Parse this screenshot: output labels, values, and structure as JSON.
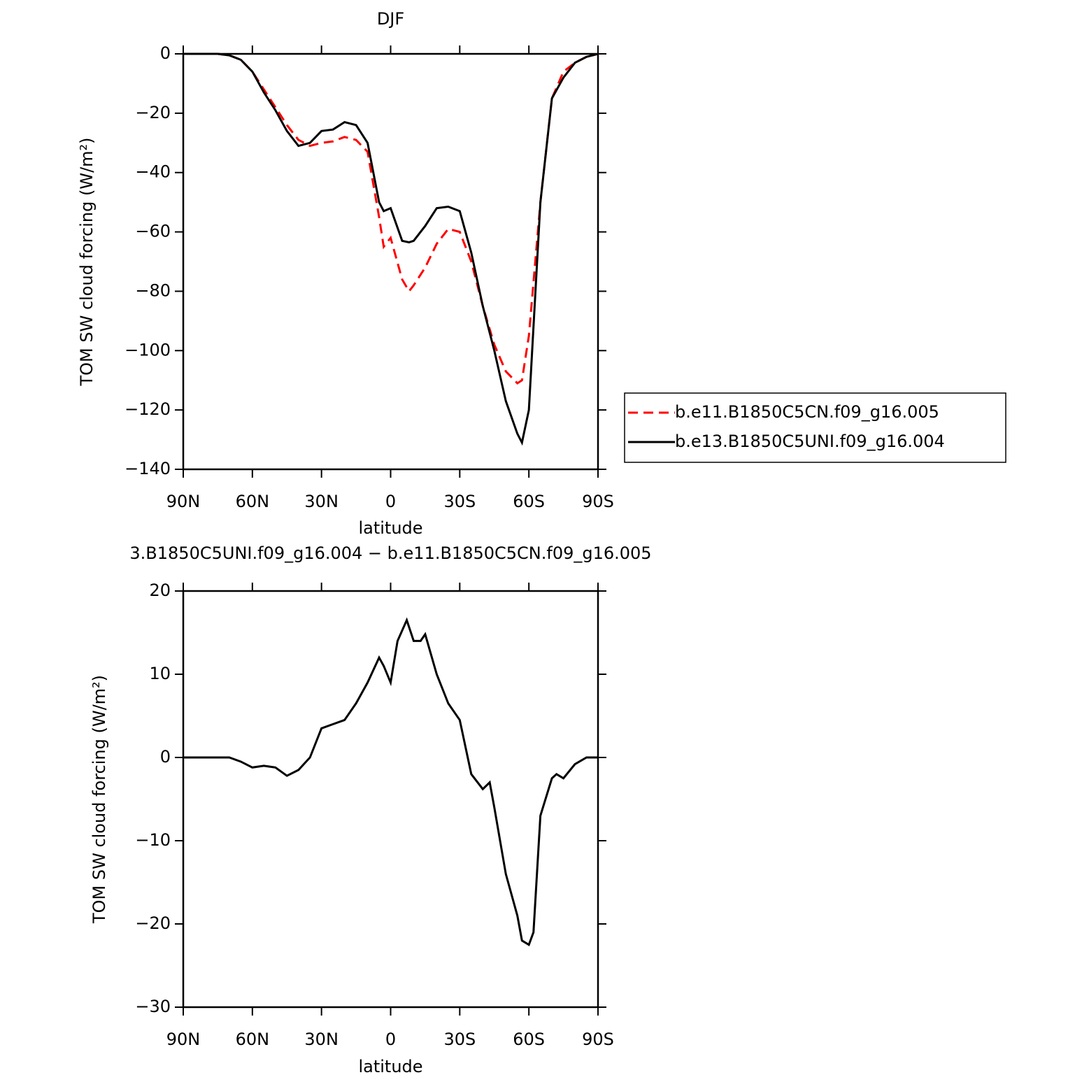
{
  "chart_data": [
    {
      "type": "line",
      "title": "DJF",
      "x_label": "latitude",
      "y_label": "TOM SW cloud forcing (W/m²)",
      "x": [
        90,
        85,
        80,
        75,
        70,
        65,
        60,
        55,
        50,
        45,
        40,
        35,
        30,
        25,
        20,
        15,
        10,
        5,
        3,
        0,
        -5,
        -8,
        -10,
        -15,
        -20,
        -25,
        -30,
        -35,
        -40,
        -45,
        -50,
        -55,
        -57,
        -60,
        -65,
        -70,
        -75,
        -80,
        -85,
        -90
      ],
      "series": [
        {
          "name": "b.e11.B1850C5CN.f09_g16.005",
          "color": "#ff0000",
          "dashed": true,
          "values": [
            0,
            0,
            0,
            0,
            -0.5,
            -2,
            -6,
            -12,
            -18,
            -24,
            -29,
            -31,
            -30,
            -29.5,
            -28,
            -29,
            -33,
            -55,
            -65,
            -62,
            -76,
            -80,
            -78,
            -72,
            -64,
            -59,
            -60,
            -70,
            -85,
            -98,
            -107,
            -111,
            -110,
            -95,
            -50,
            -15,
            -6,
            -3,
            -1,
            0
          ]
        },
        {
          "name": "b.e13.B1850C5UNI.f09_g16.004",
          "color": "#000000",
          "dashed": false,
          "values": [
            0,
            0,
            0,
            0,
            -0.5,
            -2,
            -6,
            -13,
            -19,
            -26,
            -31,
            -30,
            -26,
            -25.5,
            -23,
            -24,
            -30,
            -50,
            -53,
            -52,
            -63,
            -63.5,
            -63,
            -58,
            -52,
            -51.5,
            -53,
            -67,
            -85,
            -100,
            -117,
            -128,
            -131,
            -120,
            -50,
            -15,
            -8,
            -3,
            -1,
            0
          ]
        }
      ],
      "xlim": [
        90,
        -90
      ],
      "xticks": [
        {
          "value": 90,
          "label": "90N"
        },
        {
          "value": 60,
          "label": "60N"
        },
        {
          "value": 30,
          "label": "30N"
        },
        0,
        {
          "value": -30,
          "label": "30S"
        },
        {
          "value": -60,
          "label": "60S"
        },
        {
          "value": -90,
          "label": "90S"
        }
      ],
      "ylim": [
        -140,
        0
      ],
      "yticks": [
        {
          "value": 0,
          "label": "0"
        },
        {
          "value": -20,
          "label": "−20"
        },
        {
          "value": -40,
          "label": "−40"
        },
        {
          "value": -60,
          "label": "−60"
        },
        {
          "value": -80,
          "label": "−80"
        },
        {
          "value": -100,
          "label": "−100"
        },
        {
          "value": -120,
          "label": "−120"
        },
        {
          "value": -140,
          "label": "−140"
        }
      ],
      "legend": "right"
    },
    {
      "type": "line",
      "title": "3.B1850C5UNI.f09_g16.004 − b.e11.B1850C5CN.f09_g16.005",
      "x_label": "latitude",
      "y_label": "TOM SW cloud forcing (W/m²)",
      "x": [
        90,
        85,
        80,
        75,
        70,
        65,
        60,
        55,
        50,
        45,
        40,
        35,
        30,
        25,
        20,
        15,
        10,
        5,
        3,
        0,
        -3,
        -7,
        -10,
        -13,
        -15,
        -20,
        -25,
        -30,
        -35,
        -40,
        -43,
        -45,
        -50,
        -55,
        -57,
        -60,
        -62,
        -65,
        -70,
        -72,
        -75,
        -80,
        -85,
        -90
      ],
      "values": [
        0,
        0,
        0,
        0,
        0,
        -0.5,
        -1.2,
        -1,
        -1.2,
        -2.2,
        -1.5,
        0,
        3.5,
        4,
        4.5,
        6.5,
        9,
        12,
        11,
        9,
        14,
        16.5,
        14,
        14,
        14.8,
        10,
        6.5,
        4.5,
        -2,
        -3.8,
        -3,
        -6,
        -14,
        -19,
        -22,
        -22.5,
        -21,
        -7,
        -2.5,
        -2,
        -2.5,
        -0.8,
        0,
        0
      ],
      "color": "#000000",
      "xlim": [
        90,
        -90
      ],
      "xticks": [
        {
          "value": 90,
          "label": "90N"
        },
        {
          "value": 60,
          "label": "60N"
        },
        {
          "value": 30,
          "label": "30N"
        },
        0,
        {
          "value": -30,
          "label": "30S"
        },
        {
          "value": -60,
          "label": "60S"
        },
        {
          "value": -90,
          "label": "90S"
        }
      ],
      "ylim": [
        -30,
        20
      ],
      "yticks": [
        20,
        10,
        0,
        {
          "value": -10,
          "label": "−10"
        },
        {
          "value": -20,
          "label": "−20"
        },
        {
          "value": -30,
          "label": "−30"
        }
      ]
    }
  ]
}
